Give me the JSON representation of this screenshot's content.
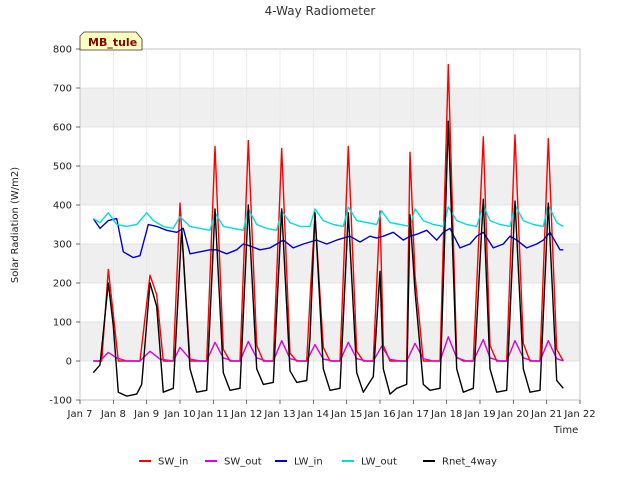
{
  "chart_data": {
    "type": "line",
    "title": "4-Way Radiometer",
    "xlabel": "Time",
    "ylabel": "Solar Radiation (W/m2)",
    "site_label": "MB_tule",
    "ylim": [
      -100,
      800
    ],
    "yticks": [
      -100,
      0,
      100,
      200,
      300,
      400,
      500,
      600,
      700,
      800
    ],
    "xlim": [
      7,
      22
    ],
    "xticks": [
      7,
      8,
      9,
      10,
      11,
      12,
      13,
      14,
      15,
      16,
      17,
      18,
      19,
      20,
      21,
      22
    ],
    "xtick_labels": [
      "Jan 7",
      "Jan 8",
      "Jan 9",
      "Jan 10",
      "Jan 11",
      "Jan 12",
      "Jan 13",
      "Jan 14",
      "Jan 15",
      "Jan 16",
      "Jan 17",
      "Jan 18",
      "Jan 19",
      "Jan 20",
      "Jan 21",
      "Jan 22"
    ],
    "grid": true,
    "banded_background": true,
    "series": [
      {
        "name": "SW_in",
        "color": "#ff0000",
        "x": [
          7.4,
          7.65,
          7.85,
          8.0,
          8.15,
          8.5,
          8.8,
          9.1,
          9.3,
          9.5,
          9.8,
          10.0,
          10.3,
          10.5,
          10.8,
          11.05,
          11.3,
          11.5,
          11.8,
          12.05,
          12.3,
          12.5,
          12.8,
          13.05,
          13.3,
          13.5,
          13.8,
          13.9,
          14.05,
          14.3,
          14.5,
          14.8,
          15.05,
          15.3,
          15.5,
          15.8,
          16.0,
          16.1,
          16.3,
          16.5,
          16.8,
          16.9,
          17.05,
          17.3,
          17.5,
          17.8,
          18.05,
          18.3,
          18.5,
          18.8,
          19.1,
          19.3,
          19.5,
          19.8,
          20.05,
          20.3,
          20.5,
          20.8,
          21.05,
          21.3,
          21.5
        ],
        "values": [
          0,
          0,
          235,
          120,
          0,
          0,
          0,
          220,
          170,
          0,
          0,
          405,
          0,
          0,
          0,
          550,
          30,
          0,
          0,
          565,
          40,
          0,
          0,
          545,
          20,
          0,
          0,
          160,
          375,
          35,
          0,
          0,
          550,
          25,
          0,
          0,
          385,
          40,
          0,
          0,
          0,
          535,
          220,
          0,
          0,
          0,
          760,
          10,
          0,
          0,
          575,
          40,
          0,
          0,
          580,
          45,
          0,
          0,
          570,
          30,
          0
        ]
      },
      {
        "name": "SW_out",
        "color": "#dd00dd",
        "x": [
          7.4,
          7.6,
          7.85,
          8.1,
          8.4,
          8.8,
          9.1,
          9.4,
          9.8,
          10.0,
          10.3,
          10.6,
          10.8,
          11.05,
          11.3,
          11.6,
          11.8,
          12.05,
          12.3,
          12.6,
          12.8,
          13.05,
          13.3,
          13.6,
          13.8,
          14.05,
          14.3,
          14.6,
          14.8,
          15.05,
          15.3,
          15.6,
          15.8,
          16.05,
          16.3,
          16.6,
          16.8,
          17.05,
          17.3,
          17.6,
          17.8,
          18.05,
          18.3,
          18.6,
          18.8,
          19.1,
          19.3,
          19.6,
          19.8,
          20.05,
          20.3,
          20.6,
          20.8,
          21.05,
          21.3,
          21.5
        ],
        "values": [
          0,
          0,
          22,
          8,
          0,
          0,
          25,
          5,
          0,
          35,
          5,
          0,
          0,
          48,
          8,
          0,
          0,
          50,
          8,
          0,
          0,
          52,
          6,
          0,
          0,
          42,
          5,
          0,
          0,
          48,
          6,
          0,
          0,
          38,
          4,
          0,
          0,
          45,
          6,
          0,
          0,
          62,
          8,
          0,
          0,
          55,
          8,
          0,
          0,
          52,
          8,
          0,
          0,
          52,
          6,
          0
        ]
      },
      {
        "name": "LW_in",
        "color": "#0000cc",
        "x": [
          7.4,
          7.6,
          7.85,
          8.1,
          8.3,
          8.6,
          8.8,
          9.05,
          9.3,
          9.6,
          9.9,
          10.1,
          10.3,
          10.6,
          10.9,
          11.1,
          11.4,
          11.7,
          11.9,
          12.1,
          12.4,
          12.7,
          12.9,
          13.1,
          13.4,
          13.7,
          13.9,
          14.1,
          14.4,
          14.7,
          14.9,
          15.1,
          15.4,
          15.7,
          15.9,
          16.1,
          16.4,
          16.7,
          16.9,
          17.1,
          17.4,
          17.7,
          17.9,
          18.1,
          18.4,
          18.7,
          18.9,
          19.1,
          19.4,
          19.7,
          19.9,
          20.1,
          20.4,
          20.7,
          20.9,
          21.1,
          21.4,
          21.5
        ],
        "values": [
          365,
          340,
          360,
          365,
          280,
          265,
          270,
          350,
          345,
          335,
          330,
          340,
          275,
          280,
          285,
          285,
          275,
          285,
          300,
          295,
          285,
          290,
          300,
          310,
          290,
          300,
          305,
          310,
          300,
          310,
          315,
          320,
          305,
          320,
          315,
          320,
          330,
          310,
          320,
          325,
          335,
          310,
          330,
          340,
          290,
          300,
          320,
          330,
          290,
          300,
          320,
          310,
          290,
          300,
          310,
          330,
          285,
          285
        ]
      },
      {
        "name": "LW_out",
        "color": "#00dddd",
        "x": [
          7.4,
          7.6,
          7.85,
          8.1,
          8.4,
          8.7,
          9.0,
          9.2,
          9.5,
          9.8,
          10.0,
          10.3,
          10.6,
          10.9,
          11.05,
          11.3,
          11.6,
          11.9,
          12.05,
          12.3,
          12.6,
          12.9,
          13.05,
          13.3,
          13.6,
          13.9,
          14.05,
          14.3,
          14.6,
          14.9,
          15.05,
          15.3,
          15.6,
          15.9,
          16.05,
          16.3,
          16.6,
          16.9,
          17.05,
          17.3,
          17.6,
          17.9,
          18.05,
          18.3,
          18.6,
          18.9,
          19.1,
          19.3,
          19.6,
          19.9,
          20.05,
          20.3,
          20.6,
          20.9,
          21.05,
          21.3,
          21.5
        ],
        "values": [
          365,
          355,
          380,
          350,
          345,
          350,
          380,
          360,
          345,
          340,
          370,
          345,
          340,
          335,
          380,
          345,
          340,
          335,
          390,
          350,
          340,
          335,
          385,
          355,
          345,
          345,
          390,
          360,
          350,
          345,
          395,
          360,
          355,
          350,
          385,
          355,
          350,
          345,
          390,
          360,
          350,
          345,
          395,
          360,
          350,
          345,
          400,
          360,
          350,
          345,
          400,
          360,
          350,
          345,
          400,
          355,
          345
        ]
      },
      {
        "name": "Rnet_4way",
        "color": "#000000",
        "x": [
          7.4,
          7.6,
          7.85,
          8.0,
          8.15,
          8.4,
          8.7,
          8.85,
          9.1,
          9.3,
          9.5,
          9.8,
          10.05,
          10.3,
          10.5,
          10.8,
          11.05,
          11.3,
          11.5,
          11.8,
          12.05,
          12.3,
          12.5,
          12.8,
          13.05,
          13.3,
          13.5,
          13.8,
          13.9,
          14.05,
          14.3,
          14.5,
          14.8,
          15.05,
          15.3,
          15.5,
          15.8,
          16.0,
          16.1,
          16.3,
          16.5,
          16.8,
          16.9,
          17.05,
          17.3,
          17.5,
          17.8,
          18.05,
          18.3,
          18.5,
          18.8,
          19.1,
          19.3,
          19.5,
          19.8,
          20.05,
          20.3,
          20.5,
          20.8,
          21.05,
          21.3,
          21.5
        ],
        "values": [
          -30,
          -10,
          200,
          90,
          -80,
          -90,
          -85,
          -60,
          200,
          140,
          -80,
          -70,
          340,
          -20,
          -80,
          -75,
          390,
          -30,
          -75,
          -70,
          400,
          -20,
          -60,
          -55,
          390,
          -25,
          -55,
          -50,
          60,
          380,
          -20,
          -75,
          -70,
          380,
          -30,
          -80,
          -40,
          230,
          -20,
          -85,
          -70,
          -60,
          375,
          180,
          -60,
          -75,
          -70,
          615,
          -20,
          -80,
          -70,
          415,
          -20,
          -80,
          -75,
          410,
          -20,
          -80,
          -75,
          405,
          -50,
          -70
        ]
      }
    ]
  }
}
